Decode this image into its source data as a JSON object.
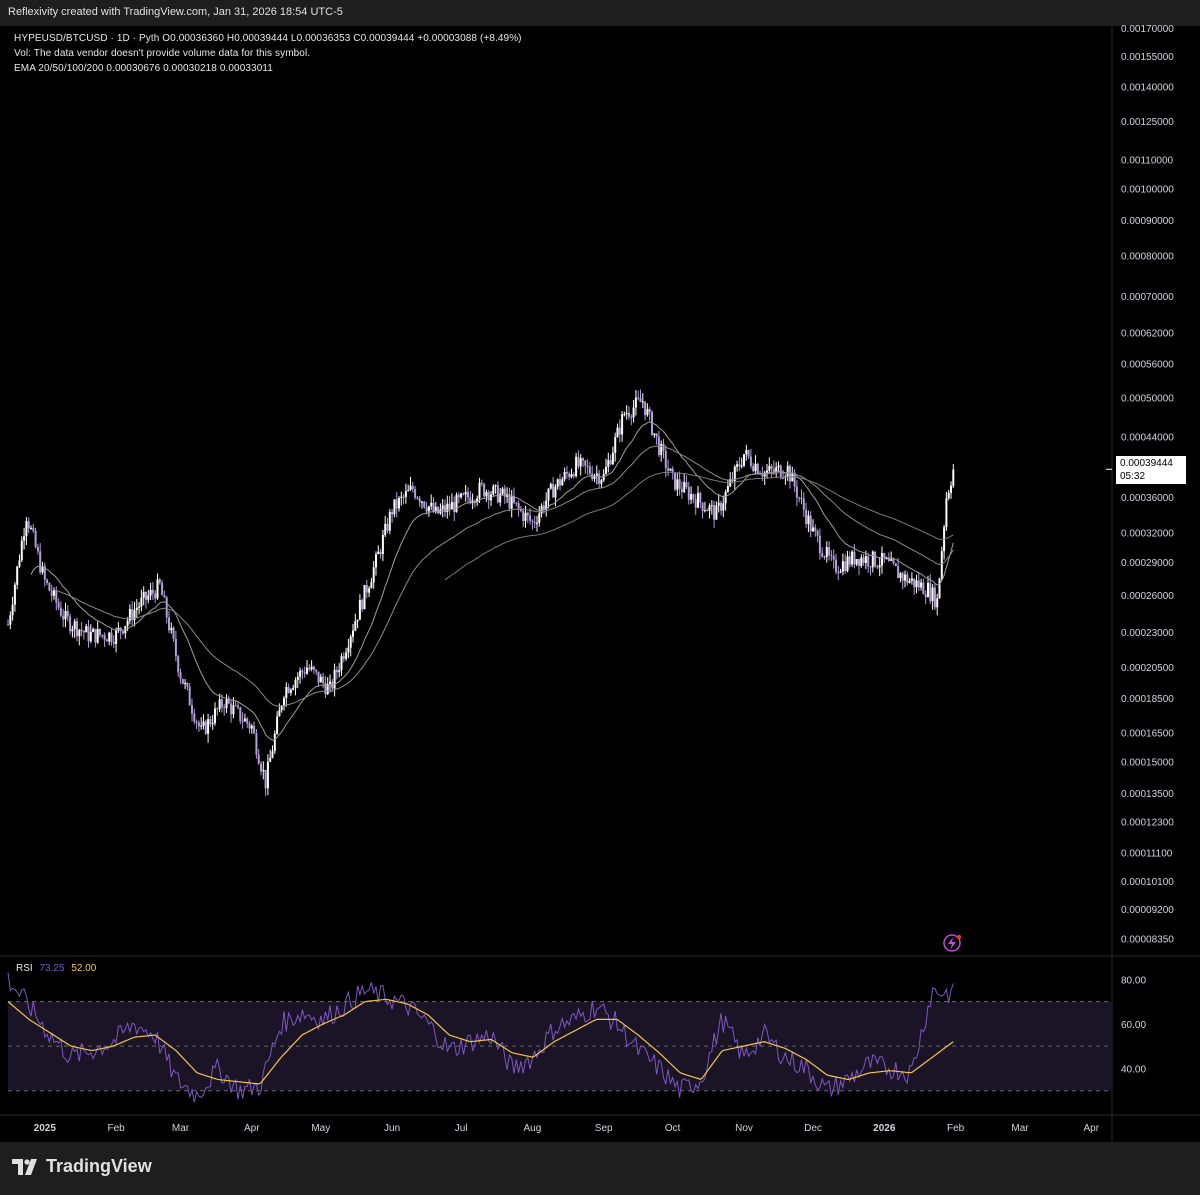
{
  "caption": "Reflexivity created with TradingView.com, Jan 31, 2026 18:54 UTC-5",
  "legend": {
    "symbol_line": "HYPEUSD/BTCUSD · 1D · Pyth  O0.00036360  H0.00039444  L0.00036353  C0.00039444  +0.00003088 (+8.49%)",
    "vol_line": "Vol: The data vendor doesn't provide volume data for this symbol.",
    "ema_line": "EMA 20/50/100/200  0.00030676  0.00030218  0.00033011"
  },
  "price_tag": {
    "price": "0.00039444",
    "countdown": "05:32"
  },
  "rsi_legend": {
    "label": "RSI",
    "rsi_value": "73.25",
    "ma_value": "52.00"
  },
  "brand": {
    "logo_text": "TradingView"
  },
  "colors": {
    "candle": "#b39ddb",
    "candle_up": "#ffffff",
    "rsi_line": "#7e57c2",
    "rsi_ma": "#f5c542",
    "rsi_band": "#1a1426"
  },
  "chart_data": [
    {
      "type": "candlestick",
      "title": "HYPEUSD/BTCUSD · 1D · Pyth",
      "y_scale": "log",
      "ylim": [
        7.9e-05,
        0.0017
      ],
      "y_ticks": [
        "0.00170000",
        "0.00155000",
        "0.00140000",
        "0.00125000",
        "0.00110000",
        "0.00100000",
        "0.00090000",
        "0.00080000",
        "0.00070000",
        "0.00062000",
        "0.00056000",
        "0.00050000",
        "0.00044000",
        "0.00039444",
        "0.00036000",
        "0.00032000",
        "0.00029000",
        "0.00026000",
        "0.00023000",
        "0.00020500",
        "0.00018500",
        "0.00016500",
        "0.00015000",
        "0.00013500",
        "0.00012300",
        "0.00011100",
        "0.00010100",
        "0.00009200",
        "0.00008350"
      ],
      "x_ticks": [
        "2025",
        "Feb",
        "Mar",
        "Apr",
        "May",
        "Jun",
        "Jul",
        "Aug",
        "Sep",
        "Oct",
        "Nov",
        "Dec",
        "2026",
        "Feb",
        "Mar",
        "Apr"
      ],
      "x_range": [
        "2024-12-16",
        "2026-04-10"
      ],
      "close_series": {
        "dates": [
          "2024-12-16",
          "2024-12-24",
          "2025-01-01",
          "2025-01-10",
          "2025-01-20",
          "2025-02-01",
          "2025-02-10",
          "2025-02-20",
          "2025-03-01",
          "2025-03-10",
          "2025-03-20",
          "2025-04-01",
          "2025-04-07",
          "2025-04-15",
          "2025-04-25",
          "2025-05-05",
          "2025-05-15",
          "2025-05-25",
          "2025-06-01",
          "2025-06-10",
          "2025-06-20",
          "2025-07-01",
          "2025-07-10",
          "2025-07-20",
          "2025-08-01",
          "2025-08-10",
          "2025-08-20",
          "2025-09-01",
          "2025-09-10",
          "2025-09-18",
          "2025-09-25",
          "2025-10-01",
          "2025-10-10",
          "2025-10-20",
          "2025-11-01",
          "2025-11-10",
          "2025-11-20",
          "2025-12-01",
          "2025-12-10",
          "2025-12-20",
          "2026-01-01",
          "2026-01-10",
          "2026-01-20",
          "2026-01-24",
          "2026-01-28",
          "2026-01-31"
        ],
        "close": [
          0.000236,
          0.00034,
          0.000272,
          0.00024,
          0.000228,
          0.000228,
          0.00025,
          0.000268,
          0.0002,
          0.000165,
          0.000183,
          0.000168,
          0.00014,
          0.00019,
          0.000205,
          0.00019,
          0.000235,
          0.00029,
          0.000345,
          0.00037,
          0.00034,
          0.000355,
          0.00037,
          0.00036,
          0.00033,
          0.00037,
          0.0004,
          0.000385,
          0.000475,
          0.000495,
          0.000425,
          0.00038,
          0.00036,
          0.00034,
          0.000415,
          0.00039,
          0.000395,
          0.00032,
          0.000285,
          0.000295,
          0.00029,
          0.000275,
          0.000265,
          0.000255,
          0.00036,
          0.000394
        ]
      },
      "ema_20_50_100_200": [
        "0.00030676",
        "0.00030218",
        "0.00033011"
      ]
    },
    {
      "type": "line",
      "title": "RSI",
      "ylim": [
        20,
        90
      ],
      "y_ticks": [
        "80.00",
        "60.00",
        "40.00"
      ],
      "series": [
        {
          "name": "RSI",
          "values": [
            80,
            68,
            55,
            45,
            48,
            52,
            60,
            55,
            35,
            28,
            40,
            30,
            32,
            60,
            65,
            62,
            68,
            75,
            72,
            68,
            60,
            48,
            52,
            55,
            40,
            45,
            58,
            62,
            68,
            60,
            48,
            40,
            30,
            35,
            62,
            45,
            55,
            45,
            40,
            30,
            35,
            42,
            40,
            38,
            75,
            73.25
          ]
        },
        {
          "name": "MA",
          "values": [
            70,
            62,
            56,
            50,
            48,
            50,
            54,
            55,
            48,
            38,
            35,
            34,
            33,
            45,
            55,
            60,
            64,
            70,
            71,
            69,
            64,
            55,
            52,
            53,
            47,
            45,
            52,
            57,
            62,
            62,
            55,
            47,
            38,
            35,
            48,
            50,
            52,
            49,
            44,
            37,
            35,
            38,
            39,
            38,
            45,
            52
          ]
        }
      ]
    }
  ]
}
